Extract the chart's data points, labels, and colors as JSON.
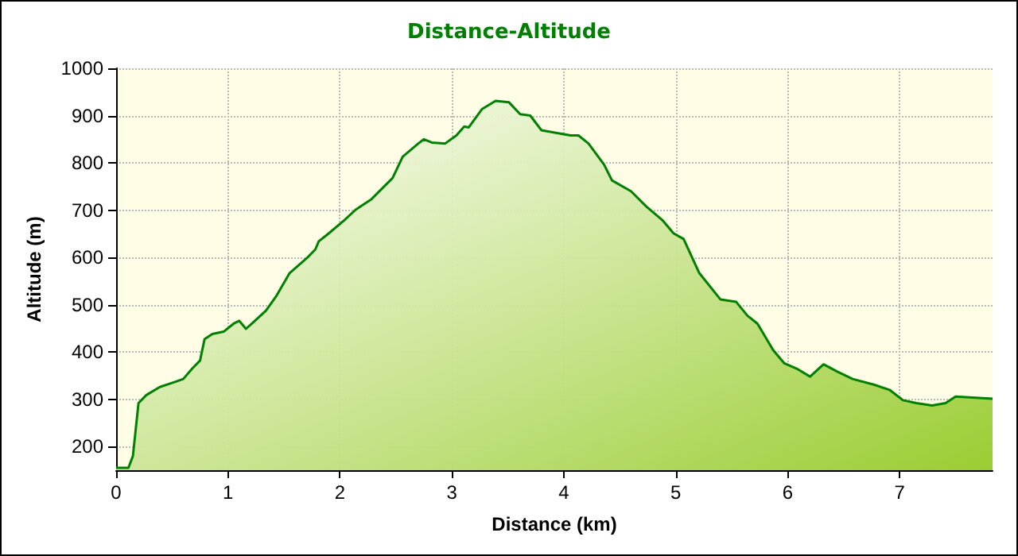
{
  "chart_data": {
    "type": "area",
    "title": "Distance-Altitude",
    "xlabel": "Distance (km)",
    "ylabel": "Altitude (m)",
    "x": [
      0,
      0.11,
      0.15,
      0.2,
      0.27,
      0.39,
      0.53,
      0.6,
      0.68,
      0.75,
      0.79,
      0.86,
      0.96,
      1.05,
      1.1,
      1.16,
      1.24,
      1.34,
      1.43,
      1.55,
      1.71,
      1.78,
      1.81,
      1.9,
      2.04,
      2.14,
      2.28,
      2.47,
      2.56,
      2.7,
      2.75,
      2.82,
      2.94,
      3.04,
      3.11,
      3.15,
      3.27,
      3.39,
      3.51,
      3.61,
      3.7,
      3.8,
      3.94,
      4.06,
      4.13,
      4.22,
      4.36,
      4.43,
      4.6,
      4.74,
      4.88,
      4.98,
      5.07,
      5.21,
      5.4,
      5.54,
      5.64,
      5.73,
      5.87,
      5.97,
      6.08,
      6.2,
      6.32,
      6.44,
      6.58,
      6.77,
      6.91,
      7.03,
      7.15,
      7.29,
      7.41,
      7.5,
      7.62,
      7.83
    ],
    "series": [
      {
        "color": "#008000",
        "values": [
          155,
          155,
          180,
          292,
          309,
          326,
          337,
          343,
          365,
          382,
          427,
          438,
          443,
          460,
          466,
          449,
          466,
          488,
          518,
          567,
          600,
          617,
          634,
          651,
          679,
          701,
          723,
          768,
          813,
          841,
          850,
          843,
          841,
          858,
          877,
          875,
          914,
          931,
          928,
          903,
          900,
          869,
          863,
          858,
          858,
          841,
          796,
          763,
          740,
          707,
          679,
          651,
          639,
          567,
          511,
          506,
          477,
          460,
          404,
          376,
          365,
          348,
          374,
          359,
          343,
          331,
          320,
          298,
          292,
          287,
          292,
          306,
          304,
          301
        ]
      }
    ],
    "xlim": [
      0,
      7.83
    ],
    "xticks": [
      0,
      1,
      2,
      3,
      4,
      5,
      6,
      7
    ],
    "ylim": [
      150,
      1000
    ],
    "yticks": [
      200,
      300,
      400,
      500,
      600,
      700,
      800,
      900,
      1000
    ],
    "grid": true,
    "marker": "none"
  }
}
